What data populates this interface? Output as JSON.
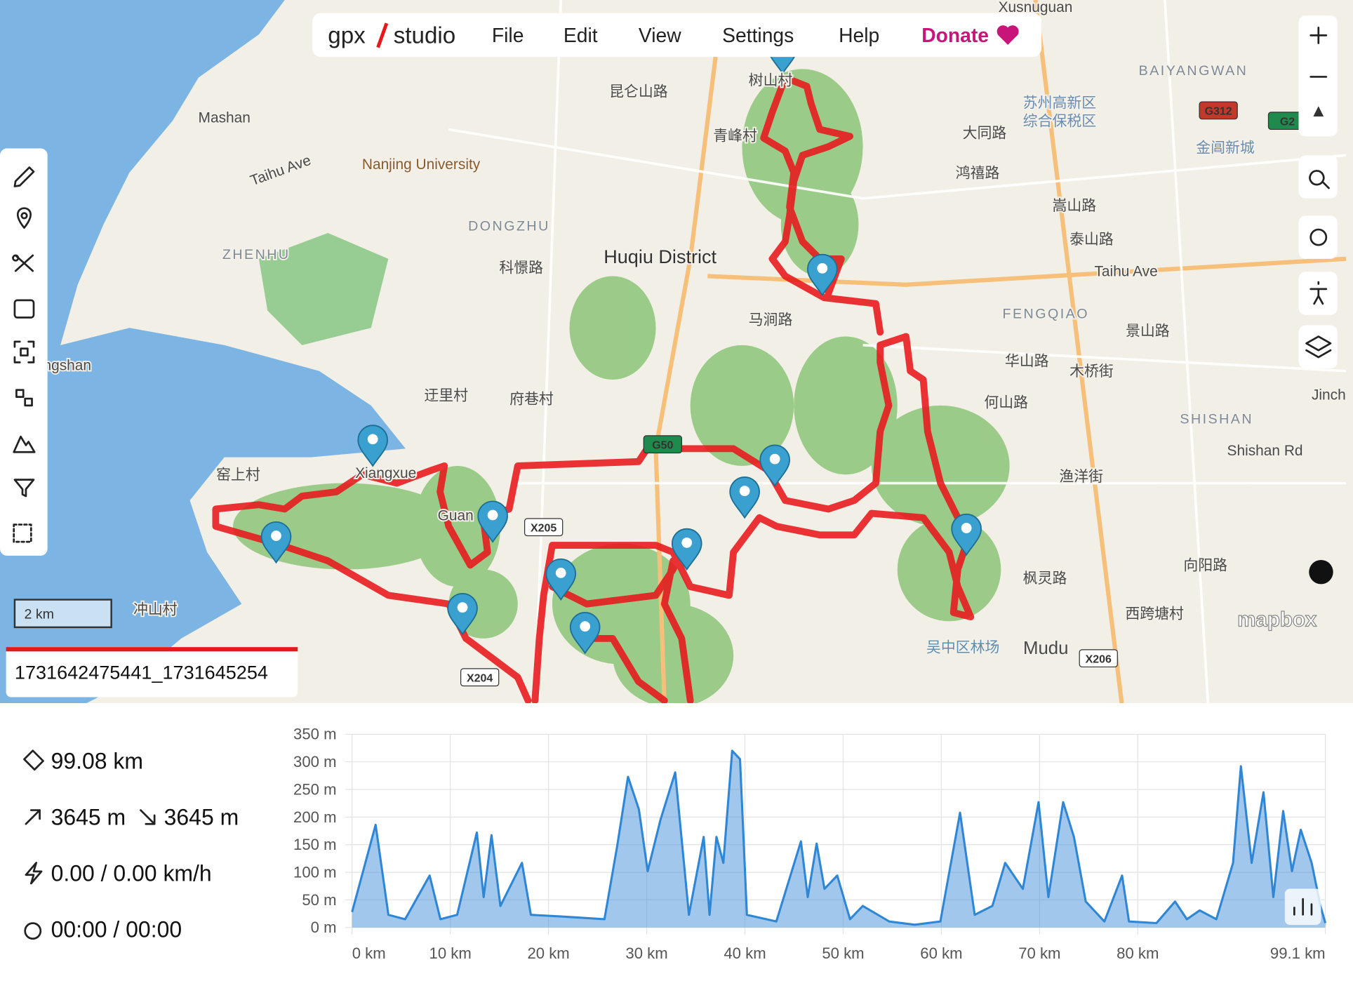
{
  "menu": {
    "logo_left": "gpx",
    "logo_right": "studio",
    "items": [
      "File",
      "Edit",
      "View",
      "Settings",
      "Help"
    ],
    "donate": "Donate"
  },
  "map": {
    "labels": [
      "Huqiu District",
      "Nanjing University",
      "Mashan",
      "DONGZHU",
      "ZHENHU",
      "FENGQIAO",
      "SHISHAN",
      "BAIYANGWAN",
      "Mudu",
      "Taihu Ave",
      "Taihu Ave",
      "Shishan Rd",
      "Jinch",
      "Xusnuguan",
      "Xiangxue",
      "Guan",
      "ngshan",
      "青峰村",
      "迂里村",
      "府巷村",
      "窑上村",
      "冲山村",
      "科憬路",
      "马涧路",
      "大同路",
      "鸿禧路",
      "嵩山路",
      "泰山路",
      "景山路",
      "华山路",
      "何山路",
      "木桥街",
      "渔洋街",
      "枫灵路",
      "向阳路",
      "西跨塘村",
      "吴中区林场",
      "苏州高新区",
      "综合保税区",
      "金阊新城",
      "昆仑山路",
      "树山村"
    ],
    "shields": [
      "X205",
      "X204",
      "X206",
      "G312",
      "G2",
      "G50"
    ],
    "scale": "2 km",
    "attribution": "mapbox"
  },
  "track_name": "1731642475441_1731645254",
  "stats": {
    "distance": "99.08 km",
    "elevation_gain": "3645 m",
    "elevation_loss": "3645 m",
    "speed": "0.00 / 0.00 km/h",
    "time": "00:00 / 00:00"
  },
  "chart_data": {
    "type": "area",
    "color": "#2f86d5",
    "grid": true,
    "x": [
      0,
      2.4,
      3.7,
      5.4,
      7.9,
      9.0,
      10.7,
      12.7,
      13.4,
      14.2,
      15.1,
      17.3,
      18.2,
      21.3,
      25.7,
      27,
      28.1,
      29.2,
      30.1,
      31.4,
      32.9,
      34.3,
      35.3,
      35.8,
      36.4,
      37.1,
      37.8,
      38.7,
      39.5,
      40.2,
      43.2,
      45.7,
      46.4,
      47.3,
      48.1,
      49.4,
      50.7,
      52,
      54.7,
      57.3,
      59.9,
      61.9,
      63.4,
      65.2,
      66.5,
      68.3,
      69.9,
      70.9,
      72.4,
      73.5,
      74.7,
      76.6,
      78.4,
      79.1,
      81.9,
      83.8,
      85,
      86.3,
      88,
      89.7,
      90.5,
      91.6,
      92.8,
      93.8,
      94.8,
      95.7,
      96.6,
      97.7,
      98.6,
      99.1
    ],
    "values": [
      28,
      186,
      23,
      15,
      94,
      15,
      23,
      172,
      55,
      167,
      39,
      117,
      23,
      20,
      15,
      148,
      273,
      214,
      102,
      195,
      281,
      23,
      117,
      164,
      23,
      164,
      117,
      320,
      305,
      23,
      11,
      156,
      55,
      152,
      70,
      94,
      15,
      39,
      11,
      5,
      11,
      208,
      23,
      39,
      117,
      70,
      227,
      55,
      227,
      164,
      47,
      11,
      94,
      11,
      8,
      47,
      15,
      31,
      15,
      117,
      292,
      117,
      245,
      55,
      211,
      102,
      177,
      117,
      39,
      8
    ],
    "xlim": [
      0,
      99.1
    ],
    "ylim": [
      0,
      350
    ],
    "xticks": [
      {
        "value": 0,
        "label": "0 km"
      },
      {
        "value": 10,
        "label": "10 km"
      },
      {
        "value": 20,
        "label": "20 km"
      },
      {
        "value": 30,
        "label": "30 km"
      },
      {
        "value": 40,
        "label": "40 km"
      },
      {
        "value": 50,
        "label": "50 km"
      },
      {
        "value": 60,
        "label": "60 km"
      },
      {
        "value": 70,
        "label": "70 km"
      },
      {
        "value": 80,
        "label": "80 km"
      },
      {
        "value": 99.1,
        "label": "99.1 km"
      }
    ],
    "yticks": [
      {
        "value": 0,
        "label": "0 m"
      },
      {
        "value": 50,
        "label": "50 m"
      },
      {
        "value": 100,
        "label": "100 m"
      },
      {
        "value": 150,
        "label": "150 m"
      },
      {
        "value": 200,
        "label": "200 m"
      },
      {
        "value": 250,
        "label": "250 m"
      },
      {
        "value": 300,
        "label": "300 m"
      },
      {
        "value": 350,
        "label": "350 m"
      }
    ]
  }
}
